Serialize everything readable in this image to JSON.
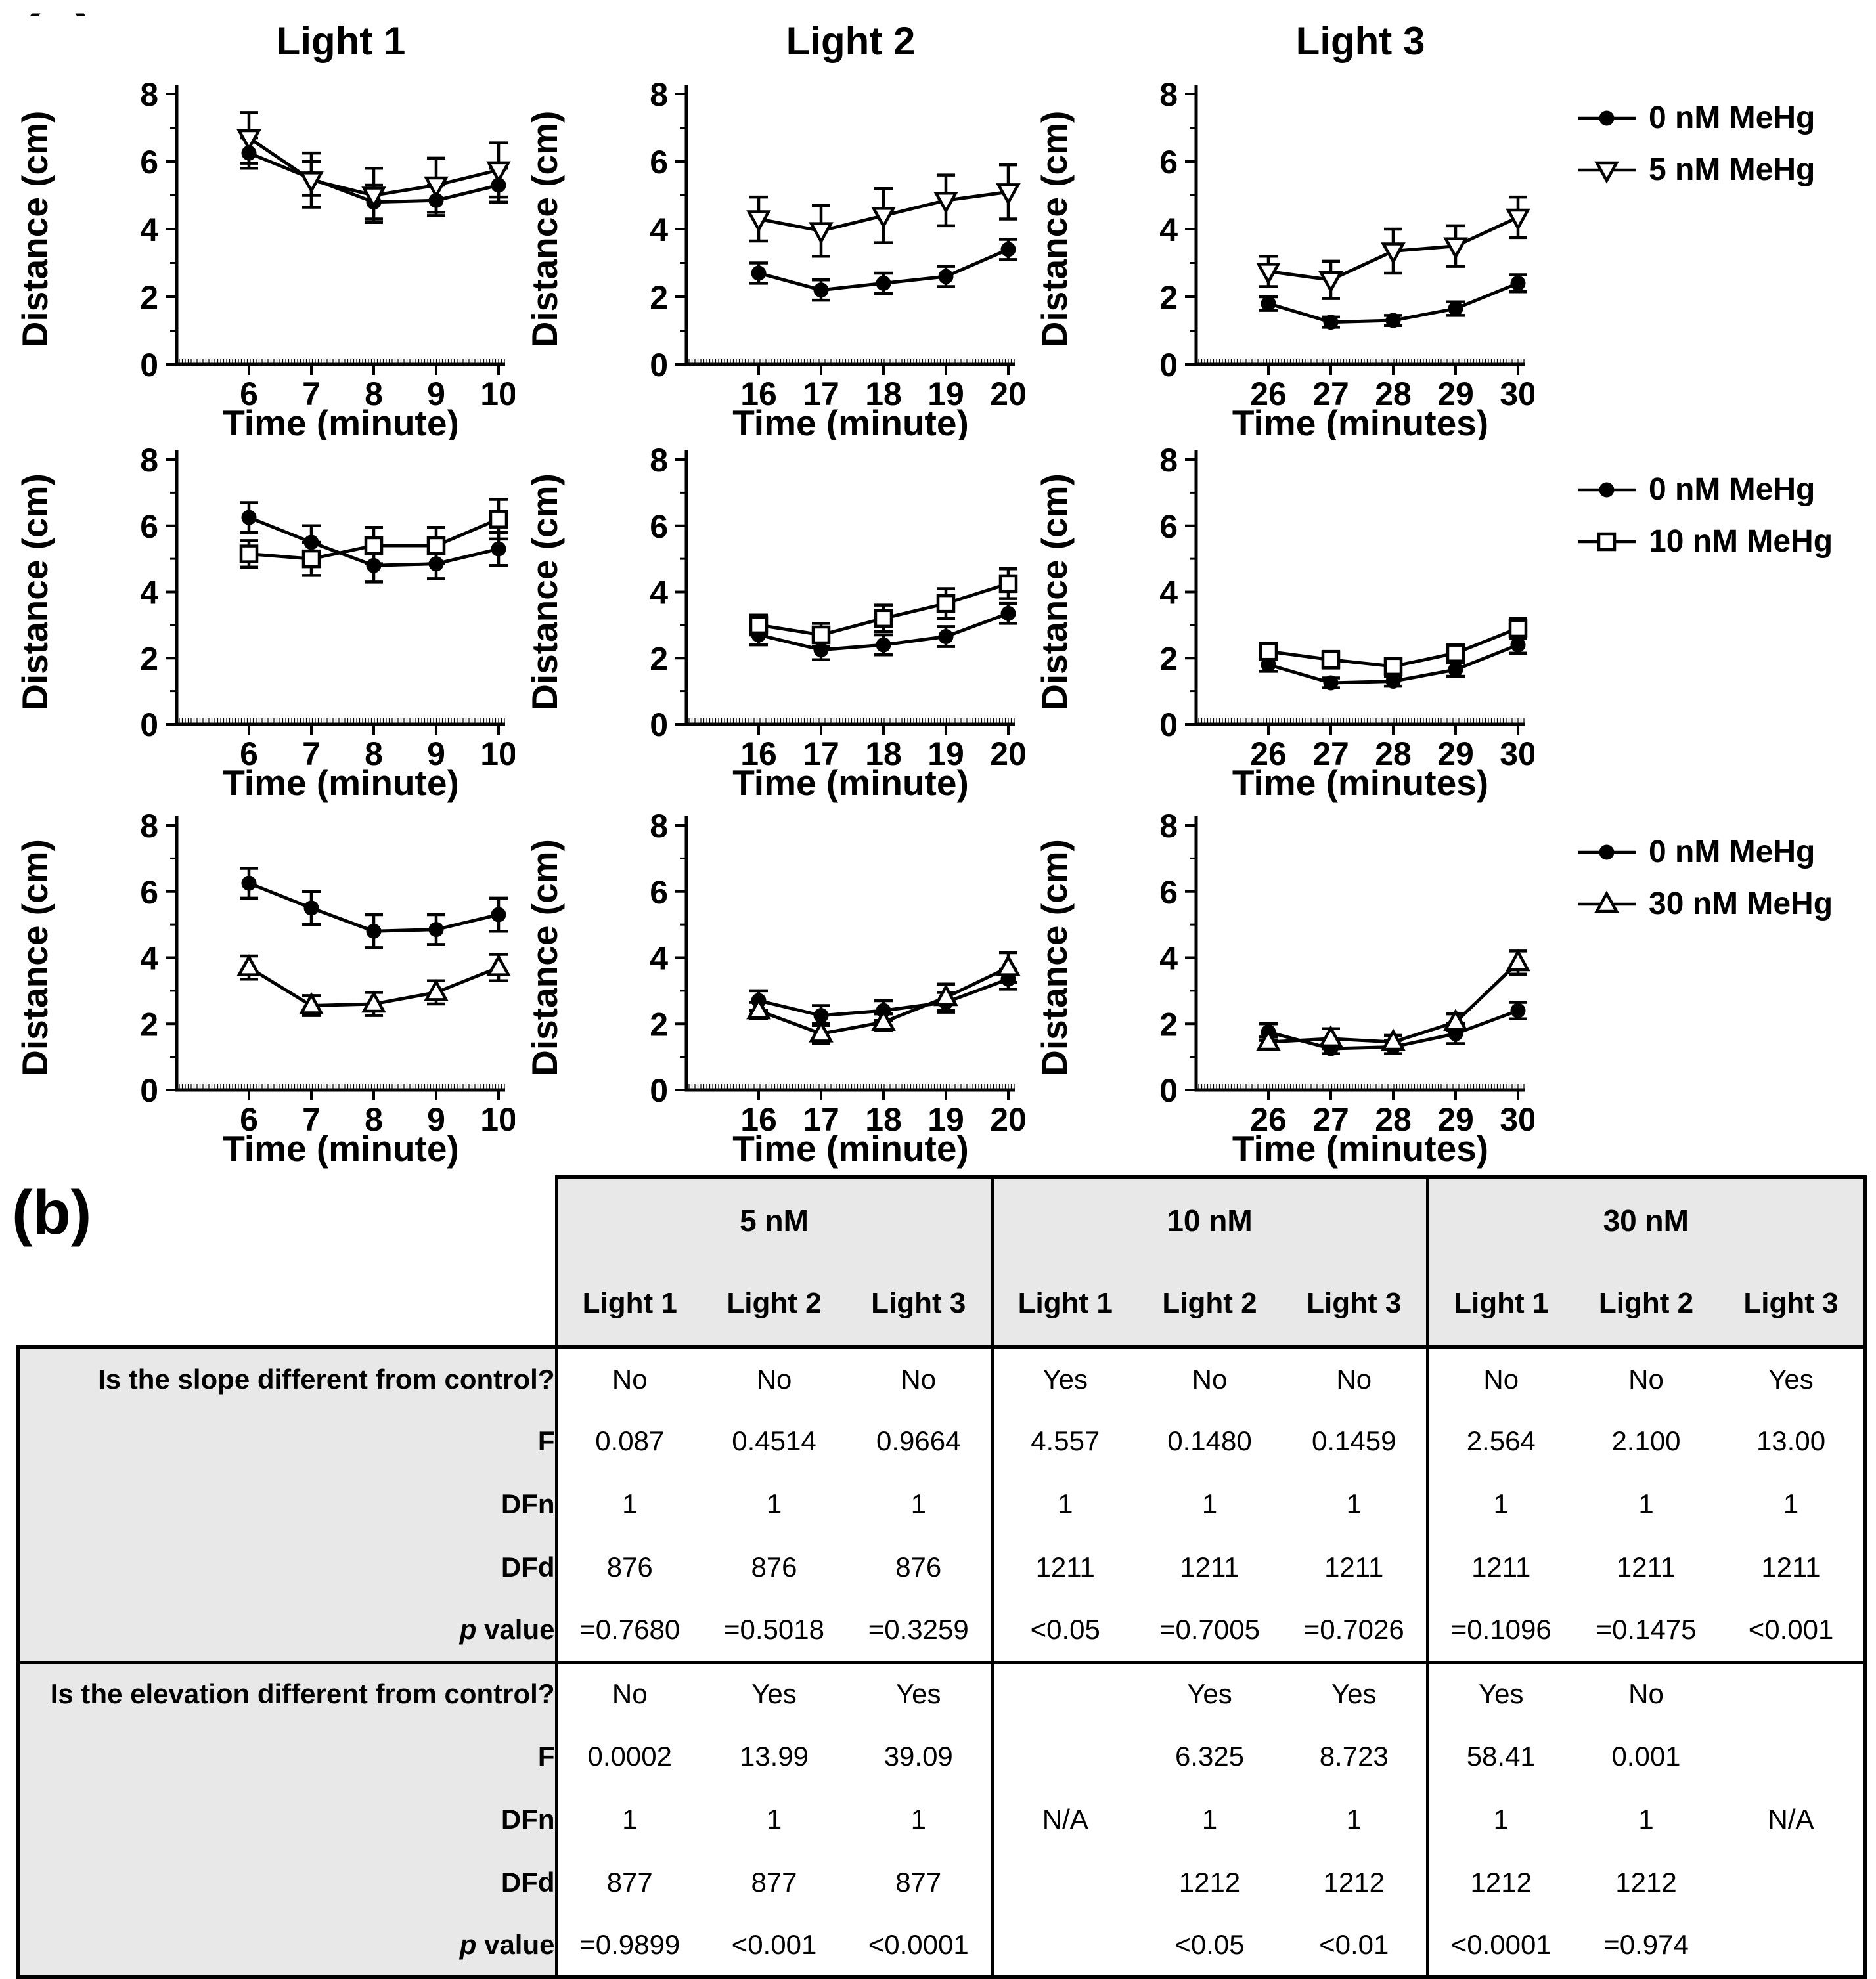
{
  "panel_a_label": "(a)",
  "panel_b_label": "(b)",
  "colors": {
    "line": "#000000",
    "table_header_bg": "#e8e8e8",
    "background": "#ffffff"
  },
  "chart_data": [
    {
      "type": "line",
      "row": 1,
      "title": "Light 1",
      "xlabel": "Time (minute)",
      "ylabel": "Distance (cm)",
      "x": [
        6,
        7,
        8,
        9,
        10
      ],
      "ylim": [
        0,
        8
      ],
      "yticks": [
        0,
        2,
        4,
        6,
        8
      ],
      "series": [
        {
          "name": "0 nM MeHg",
          "marker": "circle-filled",
          "values": [
            6.25,
            5.5,
            4.8,
            4.85,
            5.3
          ],
          "errors": [
            0.45,
            0.5,
            0.5,
            0.45,
            0.5
          ]
        },
        {
          "name": "5 nM MeHg",
          "marker": "triangle-down-open",
          "values": [
            6.7,
            5.45,
            5.0,
            5.3,
            5.75
          ],
          "errors": [
            0.75,
            0.8,
            0.8,
            0.8,
            0.8
          ]
        }
      ]
    },
    {
      "type": "line",
      "row": 1,
      "title": "Light 2",
      "xlabel": "Time (minute)",
      "ylabel": "Distance (cm)",
      "x": [
        16,
        17,
        18,
        19,
        20
      ],
      "ylim": [
        0,
        8
      ],
      "yticks": [
        0,
        2,
        4,
        6,
        8
      ],
      "series": [
        {
          "name": "0 nM MeHg",
          "marker": "circle-filled",
          "values": [
            2.7,
            2.2,
            2.4,
            2.6,
            3.4
          ],
          "errors": [
            0.3,
            0.3,
            0.3,
            0.3,
            0.3
          ]
        },
        {
          "name": "5 nM MeHg",
          "marker": "triangle-down-open",
          "values": [
            4.3,
            3.95,
            4.4,
            4.85,
            5.1
          ],
          "errors": [
            0.65,
            0.75,
            0.8,
            0.75,
            0.8
          ]
        }
      ]
    },
    {
      "type": "line",
      "row": 1,
      "title": "Light 3",
      "xlabel": "Time (minutes)",
      "ylabel": "Distance (cm)",
      "x": [
        26,
        27,
        28,
        29,
        30
      ],
      "ylim": [
        0,
        8
      ],
      "yticks": [
        0,
        2,
        4,
        6,
        8
      ],
      "series": [
        {
          "name": "0 nM MeHg",
          "marker": "circle-filled",
          "values": [
            1.8,
            1.25,
            1.3,
            1.65,
            2.4
          ],
          "errors": [
            0.2,
            0.15,
            0.15,
            0.2,
            0.25
          ]
        },
        {
          "name": "5 nM MeHg",
          "marker": "triangle-down-open",
          "values": [
            2.75,
            2.5,
            3.35,
            3.5,
            4.35
          ],
          "errors": [
            0.45,
            0.55,
            0.65,
            0.6,
            0.6
          ]
        }
      ]
    },
    {
      "type": "line",
      "row": 2,
      "title": "",
      "xlabel": "Time (minute)",
      "ylabel": "Distance (cm)",
      "x": [
        6,
        7,
        8,
        9,
        10
      ],
      "ylim": [
        0,
        8
      ],
      "yticks": [
        0,
        2,
        4,
        6,
        8
      ],
      "series": [
        {
          "name": "0 nM MeHg",
          "marker": "circle-filled",
          "values": [
            6.25,
            5.5,
            4.8,
            4.85,
            5.3
          ],
          "errors": [
            0.45,
            0.5,
            0.5,
            0.45,
            0.5
          ]
        },
        {
          "name": "10 nM MeHg",
          "marker": "square-open",
          "values": [
            5.15,
            5.0,
            5.4,
            5.4,
            6.2
          ],
          "errors": [
            0.4,
            0.5,
            0.55,
            0.55,
            0.6
          ]
        }
      ]
    },
    {
      "type": "line",
      "row": 2,
      "title": "",
      "xlabel": "Time (minute)",
      "ylabel": "Distance (cm)",
      "x": [
        16,
        17,
        18,
        19,
        20
      ],
      "ylim": [
        0,
        8
      ],
      "yticks": [
        0,
        2,
        4,
        6,
        8
      ],
      "series": [
        {
          "name": "0 nM MeHg",
          "marker": "circle-filled",
          "values": [
            2.7,
            2.25,
            2.4,
            2.65,
            3.35
          ],
          "errors": [
            0.3,
            0.3,
            0.3,
            0.3,
            0.3
          ]
        },
        {
          "name": "10 nM MeHg",
          "marker": "square-open",
          "values": [
            3.0,
            2.7,
            3.2,
            3.65,
            4.25
          ],
          "errors": [
            0.3,
            0.35,
            0.4,
            0.45,
            0.45
          ]
        }
      ]
    },
    {
      "type": "line",
      "row": 2,
      "title": "",
      "xlabel": "Time (minutes)",
      "ylabel": "Distance (cm)",
      "x": [
        26,
        27,
        28,
        29,
        30
      ],
      "ylim": [
        0,
        8
      ],
      "yticks": [
        0,
        2,
        4,
        6,
        8
      ],
      "series": [
        {
          "name": "0 nM MeHg",
          "marker": "circle-filled",
          "values": [
            1.8,
            1.25,
            1.3,
            1.65,
            2.4
          ],
          "errors": [
            0.2,
            0.15,
            0.15,
            0.2,
            0.25
          ]
        },
        {
          "name": "10 nM MeHg",
          "marker": "square-open",
          "values": [
            2.2,
            1.95,
            1.75,
            2.15,
            2.9
          ],
          "errors": [
            0.25,
            0.25,
            0.25,
            0.25,
            0.3
          ]
        }
      ]
    },
    {
      "type": "line",
      "row": 3,
      "title": "",
      "xlabel": "Time (minute)",
      "ylabel": "Distance (cm)",
      "x": [
        6,
        7,
        8,
        9,
        10
      ],
      "ylim": [
        0,
        8
      ],
      "yticks": [
        0,
        2,
        4,
        6,
        8
      ],
      "series": [
        {
          "name": "0 nM MeHg",
          "marker": "circle-filled",
          "values": [
            6.25,
            5.5,
            4.8,
            4.85,
            5.3
          ],
          "errors": [
            0.45,
            0.5,
            0.5,
            0.45,
            0.5
          ]
        },
        {
          "name": "30 nM MeHg",
          "marker": "triangle-up-open",
          "values": [
            3.7,
            2.55,
            2.6,
            2.95,
            3.7
          ],
          "errors": [
            0.35,
            0.3,
            0.35,
            0.35,
            0.4
          ]
        }
      ]
    },
    {
      "type": "line",
      "row": 3,
      "title": "",
      "xlabel": "Time (minute)",
      "ylabel": "Distance (cm)",
      "x": [
        16,
        17,
        18,
        19,
        20
      ],
      "ylim": [
        0,
        8
      ],
      "yticks": [
        0,
        2,
        4,
        6,
        8
      ],
      "series": [
        {
          "name": "0 nM MeHg",
          "marker": "circle-filled",
          "values": [
            2.7,
            2.25,
            2.4,
            2.65,
            3.35
          ],
          "errors": [
            0.3,
            0.3,
            0.3,
            0.3,
            0.3
          ]
        },
        {
          "name": "30 nM MeHg",
          "marker": "triangle-up-open",
          "values": [
            2.4,
            1.7,
            2.05,
            2.8,
            3.7
          ],
          "errors": [
            0.25,
            0.3,
            0.25,
            0.4,
            0.45
          ]
        }
      ]
    },
    {
      "type": "line",
      "row": 3,
      "title": "",
      "xlabel": "Time (minutes)",
      "ylabel": "Distance (cm)",
      "x": [
        26,
        27,
        28,
        29,
        30
      ],
      "ylim": [
        0,
        8
      ],
      "yticks": [
        0,
        2,
        4,
        6,
        8
      ],
      "series": [
        {
          "name": "0 nM MeHg",
          "marker": "circle-filled",
          "values": [
            1.75,
            1.25,
            1.3,
            1.7,
            2.4
          ],
          "errors": [
            0.25,
            0.15,
            0.2,
            0.3,
            0.25
          ]
        },
        {
          "name": "30 nM MeHg",
          "marker": "triangle-up-open",
          "values": [
            1.45,
            1.55,
            1.45,
            2.05,
            3.85
          ],
          "errors": [
            0.15,
            0.3,
            0.2,
            0.25,
            0.35
          ]
        }
      ]
    }
  ],
  "legends": [
    {
      "items": [
        {
          "label": "0 nM MeHg",
          "marker": "circle-filled"
        },
        {
          "label": "5 nM MeHg",
          "marker": "triangle-down-open"
        }
      ]
    },
    {
      "items": [
        {
          "label": "0 nM MeHg",
          "marker": "circle-filled"
        },
        {
          "label": "10 nM MeHg",
          "marker": "square-open"
        }
      ]
    },
    {
      "items": [
        {
          "label": "0 nM MeHg",
          "marker": "circle-filled"
        },
        {
          "label": "30 nM MeHg",
          "marker": "triangle-up-open"
        }
      ]
    }
  ],
  "table": {
    "groups": [
      "5 nM",
      "10 nM",
      "30 nM"
    ],
    "sub_headers": [
      "Light 1",
      "Light 2",
      "Light 3",
      "Light 1",
      "Light 2",
      "Light 3",
      "Light 1",
      "Light 2",
      "Light 3"
    ],
    "rows": [
      {
        "label": "Is the slope different from control?",
        "values": [
          "No",
          "No",
          "No",
          "Yes",
          "No",
          "No",
          "No",
          "No",
          "Yes"
        ]
      },
      {
        "label": "F",
        "values": [
          "0.087",
          "0.4514",
          "0.9664",
          "4.557",
          "0.1480",
          "0.1459",
          "2.564",
          "2.100",
          "13.00"
        ]
      },
      {
        "label": "DFn",
        "values": [
          "1",
          "1",
          "1",
          "1",
          "1",
          "1",
          "1",
          "1",
          "1"
        ]
      },
      {
        "label": "DFd",
        "values": [
          "876",
          "876",
          "876",
          "1211",
          "1211",
          "1211",
          "1211",
          "1211",
          "1211"
        ]
      },
      {
        "label": "p value",
        "p_italic": true,
        "values": [
          "=0.7680",
          "=0.5018",
          "=0.3259",
          "<0.05",
          "=0.7005",
          "=0.7026",
          "=0.1096",
          "=0.1475",
          "<0.001"
        ]
      },
      {
        "label": "Is the elevation different from control?",
        "section": true,
        "values": [
          "No",
          "Yes",
          "Yes",
          "",
          "Yes",
          "Yes",
          "Yes",
          "No",
          ""
        ]
      },
      {
        "label": "F",
        "values": [
          "0.0002",
          "13.99",
          "39.09",
          "",
          "6.325",
          "8.723",
          "58.41",
          "0.001",
          ""
        ]
      },
      {
        "label": "DFn",
        "values": [
          "1",
          "1",
          "1",
          "N/A",
          "1",
          "1",
          "1",
          "1",
          "N/A"
        ]
      },
      {
        "label": "DFd",
        "values": [
          "877",
          "877",
          "877",
          "",
          "1212",
          "1212",
          "1212",
          "1212",
          ""
        ]
      },
      {
        "label": "p value",
        "p_italic": true,
        "values": [
          "=0.9899",
          "<0.001",
          "<0.0001",
          "",
          "<0.05",
          "<0.01",
          "<0.0001",
          "=0.974",
          ""
        ]
      }
    ]
  }
}
